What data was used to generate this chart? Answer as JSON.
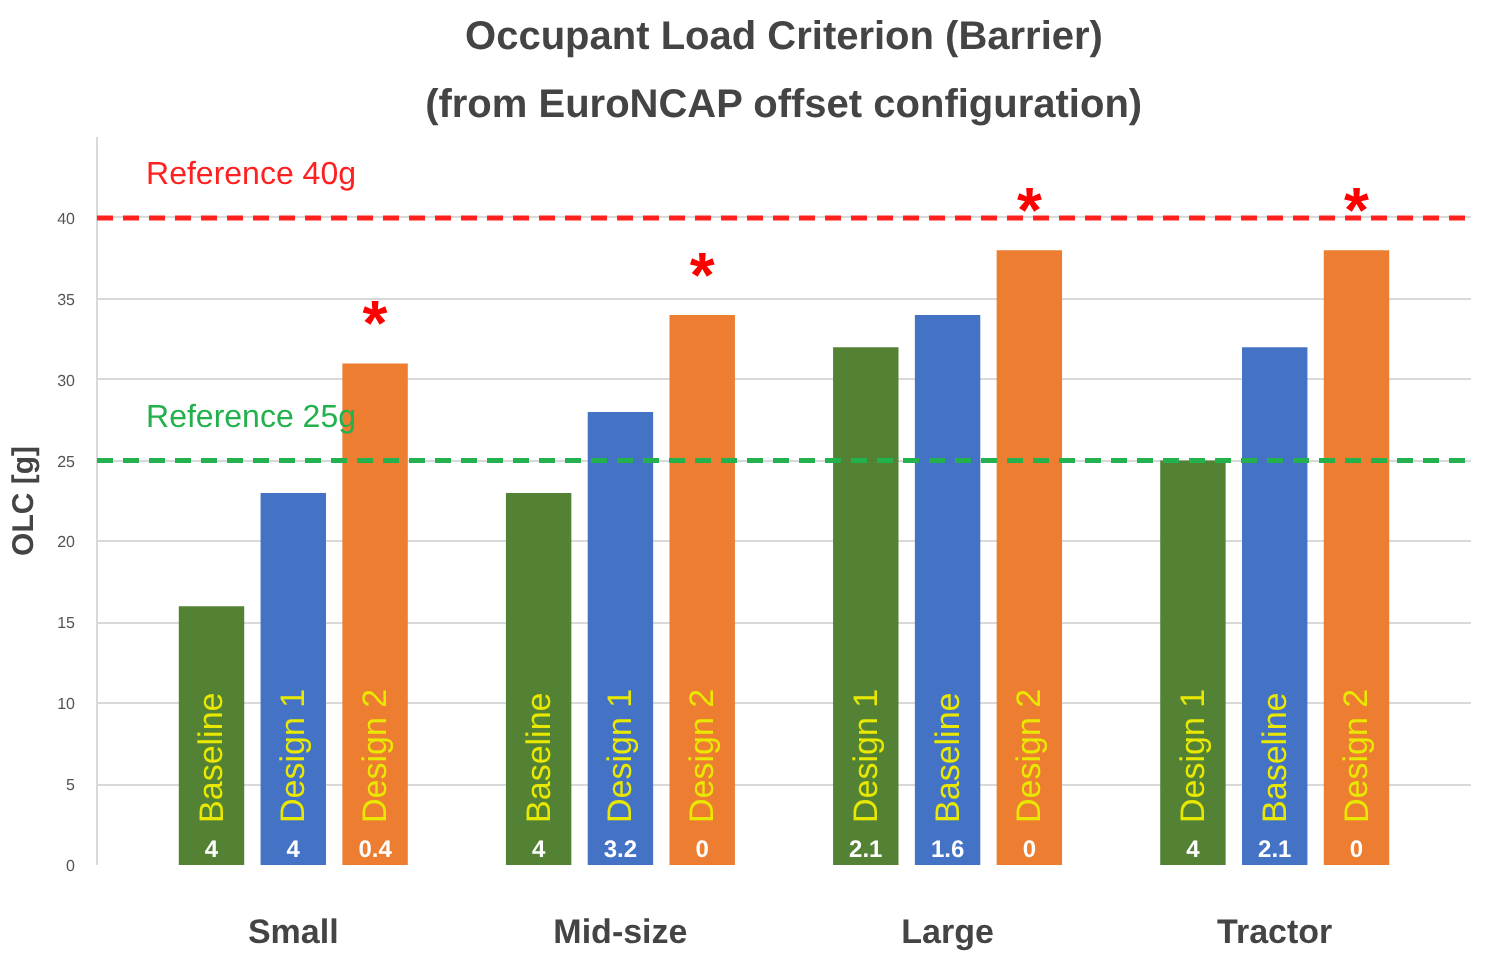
{
  "chart_data": {
    "type": "bar",
    "title": "Occupant Load Criterion (Barrier)",
    "subtitle": "(from EuroNCAP offset configuration)",
    "ylabel": "OLC [g]",
    "categories": [
      "Small",
      "Mid-size",
      "Large",
      "Tractor"
    ],
    "series": [
      {
        "color": "#548235",
        "values": [
          16,
          23,
          32,
          25
        ]
      },
      {
        "color": "#4472c4",
        "values": [
          23,
          28,
          34,
          32
        ]
      },
      {
        "color": "#ed7d31",
        "values": [
          31,
          34,
          38,
          38
        ]
      }
    ],
    "ylim": [
      0,
      45
    ],
    "yticks": [
      0,
      5,
      10,
      15,
      20,
      25,
      30,
      35,
      40
    ],
    "grid": "y",
    "ref_lines": [
      {
        "axis": "y",
        "value": 40,
        "label": "Reference 40g",
        "color": "#ff2020",
        "line_style": "dashed"
      },
      {
        "axis": "y",
        "value": 25,
        "label": "Reference 25g",
        "color": "#22b14c",
        "line_style": "dashed"
      }
    ],
    "annotations": [
      "Baseline",
      "Design 1",
      "Design 2",
      "Baseline",
      "Design 1",
      "Design 2",
      "Design 1",
      "Baseline",
      "Design 2",
      "Design 1",
      "Baseline",
      "Design 2",
      "4",
      "4",
      "0.4",
      "4",
      "3.2",
      "0",
      "2.1",
      "1.6",
      "0",
      "4",
      "2.1",
      "0",
      "*",
      "*",
      "*",
      "*"
    ]
  }
}
